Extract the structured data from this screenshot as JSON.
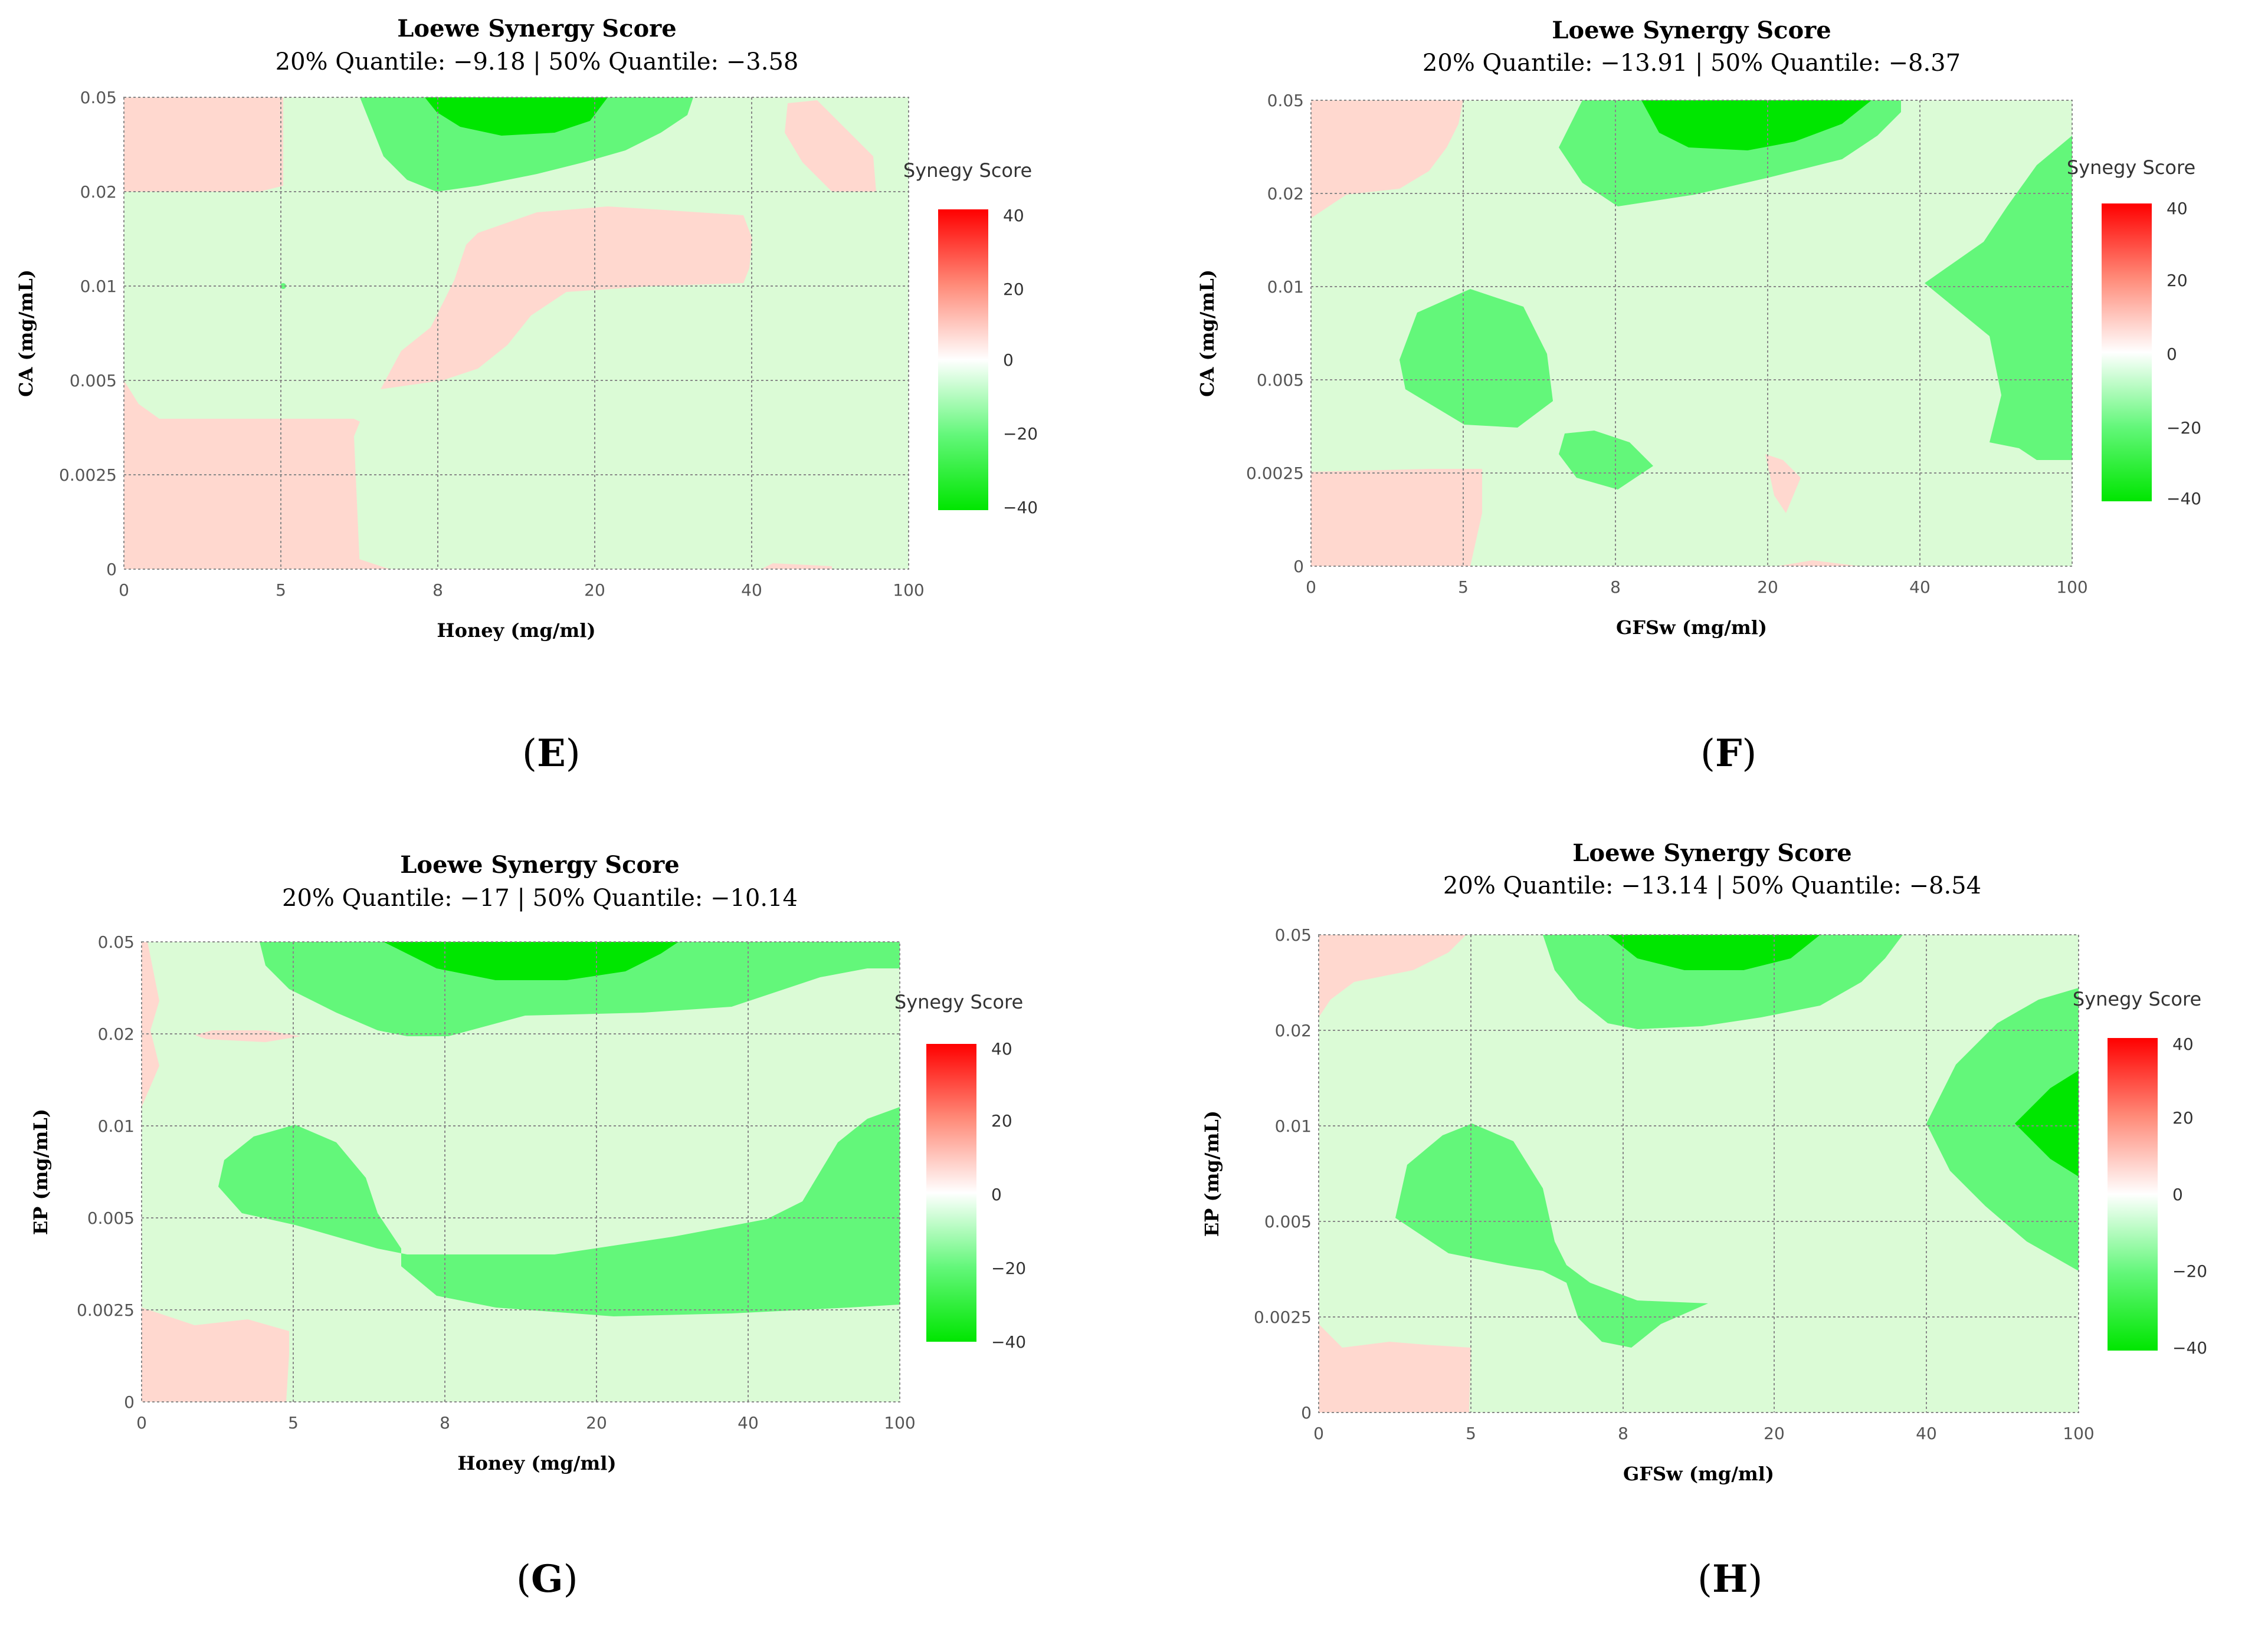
{
  "chart_data": [
    {
      "id": "E",
      "type": "heatmap",
      "title": "Loewe Synergy Score",
      "subtitle": "20% Quantile: −9.18 | 50% Quantile: −3.58",
      "xlabel": "Honey (mg/ml)",
      "ylabel": "CA (mg/mL)",
      "x_ticks": [
        "0",
        "5",
        "8",
        "20",
        "40",
        "100"
      ],
      "y_ticks": [
        "0",
        "0.0025",
        "0.005",
        "0.01",
        "0.02",
        "0.05"
      ],
      "legend_title": "Synegy Score",
      "legend_ticks": [
        "40",
        "20",
        "0",
        "−20",
        "−40"
      ],
      "color_range": [
        -40,
        40
      ],
      "colors": {
        "strong_positive": "#ff0000",
        "weak_positive": "#ffd8cf",
        "neutral": "#ffffff",
        "weak_negative": "#dbfbd6",
        "moderate_negative": "#63f77a",
        "strong_negative": "#00e600"
      },
      "grid": true,
      "panel_label": "E"
    },
    {
      "id": "F",
      "type": "heatmap",
      "title": "Loewe Synergy Score",
      "subtitle": "20% Quantile: −13.91 | 50% Quantile: −8.37",
      "xlabel": "GFSw (mg/ml)",
      "ylabel": "CA (mg/mL)",
      "x_ticks": [
        "0",
        "5",
        "8",
        "20",
        "40",
        "100"
      ],
      "y_ticks": [
        "0",
        "0.0025",
        "0.005",
        "0.01",
        "0.02",
        "0.05"
      ],
      "legend_title": "Synegy Score",
      "legend_ticks": [
        "40",
        "20",
        "0",
        "−20",
        "−40"
      ],
      "color_range": [
        -40,
        40
      ],
      "colors": {
        "strong_positive": "#ff0000",
        "weak_positive": "#ffd8cf",
        "neutral": "#ffffff",
        "weak_negative": "#dbfbd6",
        "moderate_negative": "#63f77a",
        "strong_negative": "#00e600"
      },
      "grid": true,
      "panel_label": "F"
    },
    {
      "id": "G",
      "type": "heatmap",
      "title": "Loewe Synergy Score",
      "subtitle": "20% Quantile: −17 | 50% Quantile: −10.14",
      "xlabel": "Honey (mg/ml)",
      "ylabel": "EP (mg/mL)",
      "x_ticks": [
        "0",
        "5",
        "8",
        "20",
        "40",
        "100"
      ],
      "y_ticks": [
        "0",
        "0.0025",
        "0.005",
        "0.01",
        "0.02",
        "0.05"
      ],
      "legend_title": "Synegy Score",
      "legend_ticks": [
        "40",
        "20",
        "0",
        "−20",
        "−40"
      ],
      "color_range": [
        -40,
        40
      ],
      "colors": {
        "strong_positive": "#ff0000",
        "weak_positive": "#ffd8cf",
        "neutral": "#ffffff",
        "weak_negative": "#dbfbd6",
        "moderate_negative": "#63f77a",
        "strong_negative": "#00e600"
      },
      "grid": true,
      "panel_label": "G"
    },
    {
      "id": "H",
      "type": "heatmap",
      "title": "Loewe Synergy Score",
      "subtitle": "20% Quantile: −13.14 | 50% Quantile: −8.54",
      "xlabel": "GFSw (mg/ml)",
      "ylabel": "EP (mg/mL)",
      "x_ticks": [
        "0",
        "5",
        "8",
        "20",
        "40",
        "100"
      ],
      "y_ticks": [
        "0",
        "0.0025",
        "0.005",
        "0.01",
        "0.02",
        "0.05"
      ],
      "legend_title": "Synegy Score",
      "legend_ticks": [
        "40",
        "20",
        "0",
        "−20",
        "−40"
      ],
      "color_range": [
        -40,
        40
      ],
      "colors": {
        "strong_positive": "#ff0000",
        "weak_positive": "#ffd8cf",
        "neutral": "#ffffff",
        "weak_negative": "#dbfbd6",
        "moderate_negative": "#63f77a",
        "strong_negative": "#00e600"
      },
      "grid": true,
      "panel_label": "H"
    }
  ]
}
